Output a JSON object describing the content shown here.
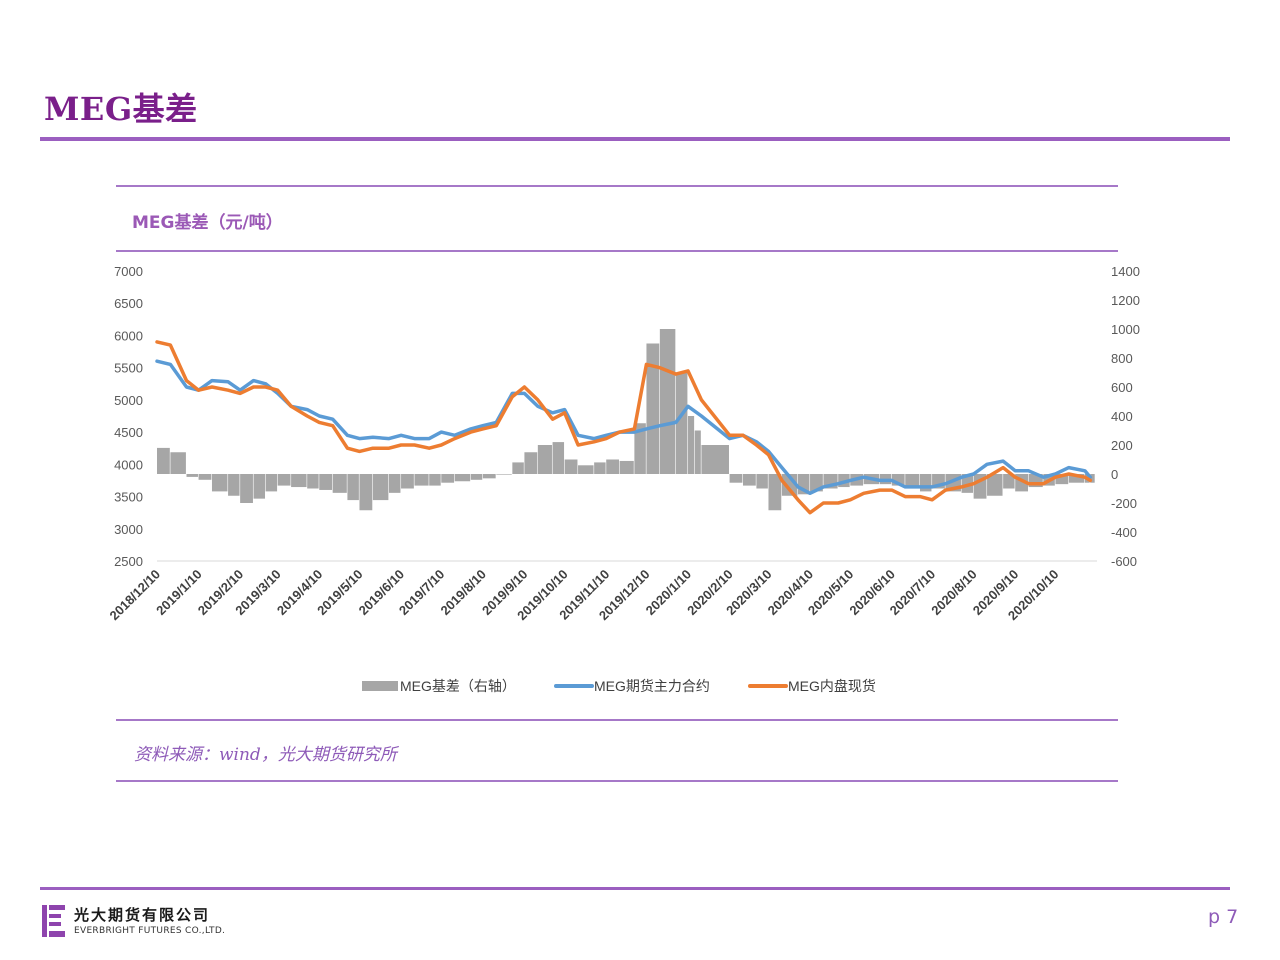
{
  "page": {
    "title": "MEG基差",
    "chart_heading": "MEG基差（元/吨）",
    "source": "资料来源：wind，光大期货研究所",
    "page_number": "p 7"
  },
  "company": {
    "name_cn": "光大期货有限公司",
    "name_en": "EVERBRIGHT FUTURES CO.,LTD."
  },
  "colors": {
    "accent": "#9b5fc0",
    "basis_bar": "#a6a6a6",
    "futures_line": "#5b9bd5",
    "spot_line": "#ed7d31"
  },
  "chart_data": {
    "type": "line",
    "left_axis": {
      "min": 2500,
      "max": 7000,
      "step": 500
    },
    "right_axis": {
      "min": -600,
      "max": 1400,
      "step": 200
    },
    "x_ticks": [
      "2018/12/10",
      "2019/1/10",
      "2019/2/10",
      "2019/3/10",
      "2019/4/10",
      "2019/5/10",
      "2019/6/10",
      "2019/7/10",
      "2019/8/10",
      "2019/9/10",
      "2019/10/10",
      "2019/11/10",
      "2019/12/10",
      "2020/1/10",
      "2020/2/10",
      "2020/3/10",
      "2020/4/10",
      "2020/5/10",
      "2020/6/10",
      "2020/7/10",
      "2020/8/10",
      "2020/9/10",
      "2020/10/10"
    ],
    "series": [
      {
        "name": "MEG基差（右轴）",
        "type": "bar",
        "axis": "right",
        "x": [
          "2018/12/10",
          "2018/12/20",
          "2019/1/1",
          "2019/1/10",
          "2019/1/20",
          "2019/2/1",
          "2019/2/10",
          "2019/2/20",
          "2019/3/1",
          "2019/3/10",
          "2019/3/20",
          "2019/4/1",
          "2019/4/10",
          "2019/4/20",
          "2019/5/1",
          "2019/5/10",
          "2019/5/20",
          "2019/6/1",
          "2019/6/10",
          "2019/6/20",
          "2019/7/1",
          "2019/7/10",
          "2019/7/20",
          "2019/8/1",
          "2019/8/10",
          "2019/8/20",
          "2019/9/1",
          "2019/9/10",
          "2019/9/20",
          "2019/10/1",
          "2019/10/10",
          "2019/10/20",
          "2019/11/1",
          "2019/11/10",
          "2019/11/20",
          "2019/12/1",
          "2019/12/10",
          "2019/12/20",
          "2020/1/1",
          "2020/1/10",
          "2020/1/15",
          "2020/1/20",
          "2020/2/10",
          "2020/2/20",
          "2020/3/1",
          "2020/3/10",
          "2020/3/20",
          "2020/4/1",
          "2020/4/10",
          "2020/4/20",
          "2020/5/1",
          "2020/5/10",
          "2020/5/20",
          "2020/6/1",
          "2020/6/10",
          "2020/6/20",
          "2020/7/1",
          "2020/7/10",
          "2020/7/20",
          "2020/8/1",
          "2020/8/10",
          "2020/8/20",
          "2020/9/1",
          "2020/9/10",
          "2020/9/20",
          "2020/10/1",
          "2020/10/10",
          "2020/10/20",
          "2020/11/1",
          "2020/11/5"
        ],
        "values": [
          180,
          150,
          -20,
          -40,
          -120,
          -150,
          -200,
          -170,
          -120,
          -80,
          -90,
          -100,
          -110,
          -130,
          -180,
          -250,
          -180,
          -130,
          -100,
          -80,
          -80,
          -60,
          -50,
          -40,
          -30,
          0,
          80,
          150,
          200,
          220,
          100,
          60,
          80,
          100,
          90,
          350,
          900,
          1000,
          700,
          400,
          300,
          200,
          -60,
          -80,
          -100,
          -250,
          -150,
          -140,
          -120,
          -100,
          -90,
          -80,
          -70,
          -70,
          -80,
          -100,
          -120,
          -100,
          -120,
          -130,
          -170,
          -150,
          -100,
          -120,
          -90,
          -80,
          -70,
          -60,
          -60,
          -60
        ]
      },
      {
        "name": "MEG期货主力合约",
        "type": "line",
        "axis": "left",
        "x": [
          "2018/12/10",
          "2018/12/20",
          "2019/1/1",
          "2019/1/10",
          "2019/1/20",
          "2019/2/1",
          "2019/2/10",
          "2019/2/20",
          "2019/3/1",
          "2019/3/10",
          "2019/3/20",
          "2019/4/1",
          "2019/4/10",
          "2019/4/20",
          "2019/5/1",
          "2019/5/10",
          "2019/5/20",
          "2019/6/1",
          "2019/6/10",
          "2019/6/20",
          "2019/7/1",
          "2019/7/10",
          "2019/7/20",
          "2019/8/1",
          "2019/8/10",
          "2019/8/20",
          "2019/9/1",
          "2019/9/10",
          "2019/9/20",
          "2019/10/1",
          "2019/10/10",
          "2019/10/20",
          "2019/11/1",
          "2019/11/10",
          "2019/11/20",
          "2019/12/1",
          "2019/12/10",
          "2019/12/20",
          "2020/1/1",
          "2020/1/10",
          "2020/1/20",
          "2020/2/10",
          "2020/2/20",
          "2020/3/1",
          "2020/3/10",
          "2020/3/20",
          "2020/4/1",
          "2020/4/10",
          "2020/4/20",
          "2020/5/1",
          "2020/5/10",
          "2020/5/20",
          "2020/6/1",
          "2020/6/10",
          "2020/6/20",
          "2020/7/1",
          "2020/7/10",
          "2020/7/20",
          "2020/8/1",
          "2020/8/10",
          "2020/8/20",
          "2020/9/1",
          "2020/9/10",
          "2020/9/20",
          "2020/10/1",
          "2020/10/10",
          "2020/10/20",
          "2020/11/1",
          "2020/11/5"
        ],
        "values": [
          5600,
          5550,
          5200,
          5150,
          5300,
          5280,
          5150,
          5300,
          5250,
          5100,
          4900,
          4850,
          4750,
          4700,
          4450,
          4400,
          4420,
          4400,
          4450,
          4400,
          4400,
          4500,
          4450,
          4550,
          4600,
          4650,
          5100,
          5100,
          4900,
          4800,
          4850,
          4450,
          4400,
          4450,
          4500,
          4500,
          4550,
          4600,
          4650,
          4900,
          4750,
          4400,
          4450,
          4350,
          4200,
          3950,
          3650,
          3550,
          3650,
          3700,
          3750,
          3800,
          3750,
          3750,
          3650,
          3650,
          3650,
          3700,
          3800,
          3850,
          4000,
          4050,
          3900,
          3900,
          3800,
          3850,
          3950,
          3900,
          3800
        ]
      },
      {
        "name": "MEG内盘现货",
        "type": "line",
        "axis": "left",
        "x": [
          "2018/12/10",
          "2018/12/20",
          "2019/1/1",
          "2019/1/10",
          "2019/1/20",
          "2019/2/1",
          "2019/2/10",
          "2019/2/20",
          "2019/3/1",
          "2019/3/10",
          "2019/3/20",
          "2019/4/1",
          "2019/4/10",
          "2019/4/20",
          "2019/5/1",
          "2019/5/10",
          "2019/5/20",
          "2019/6/1",
          "2019/6/10",
          "2019/6/20",
          "2019/7/1",
          "2019/7/10",
          "2019/7/20",
          "2019/8/1",
          "2019/8/10",
          "2019/8/20",
          "2019/9/1",
          "2019/9/10",
          "2019/9/20",
          "2019/10/1",
          "2019/10/10",
          "2019/10/20",
          "2019/11/1",
          "2019/11/10",
          "2019/11/20",
          "2019/12/1",
          "2019/12/10",
          "2019/12/20",
          "2020/1/1",
          "2020/1/10",
          "2020/1/20",
          "2020/2/10",
          "2020/2/20",
          "2020/3/1",
          "2020/3/10",
          "2020/3/20",
          "2020/4/1",
          "2020/4/10",
          "2020/4/20",
          "2020/5/1",
          "2020/5/10",
          "2020/5/20",
          "2020/6/1",
          "2020/6/10",
          "2020/6/20",
          "2020/7/1",
          "2020/7/10",
          "2020/7/20",
          "2020/8/1",
          "2020/8/10",
          "2020/8/20",
          "2020/9/1",
          "2020/9/10",
          "2020/9/20",
          "2020/10/1",
          "2020/10/10",
          "2020/10/20",
          "2020/11/1",
          "2020/11/5"
        ],
        "values": [
          5900,
          5850,
          5300,
          5150,
          5200,
          5150,
          5100,
          5200,
          5200,
          5150,
          4900,
          4750,
          4650,
          4600,
          4250,
          4200,
          4250,
          4250,
          4300,
          4300,
          4250,
          4300,
          4400,
          4500,
          4550,
          4600,
          5050,
          5200,
          5000,
          4700,
          4800,
          4300,
          4350,
          4400,
          4500,
          4550,
          5550,
          5500,
          5400,
          5450,
          5000,
          4450,
          4450,
          4300,
          4150,
          3750,
          3450,
          3250,
          3400,
          3400,
          3450,
          3550,
          3600,
          3600,
          3500,
          3500,
          3450,
          3600,
          3650,
          3700,
          3800,
          3950,
          3800,
          3700,
          3700,
          3800,
          3850,
          3800,
          3750
        ]
      }
    ]
  }
}
